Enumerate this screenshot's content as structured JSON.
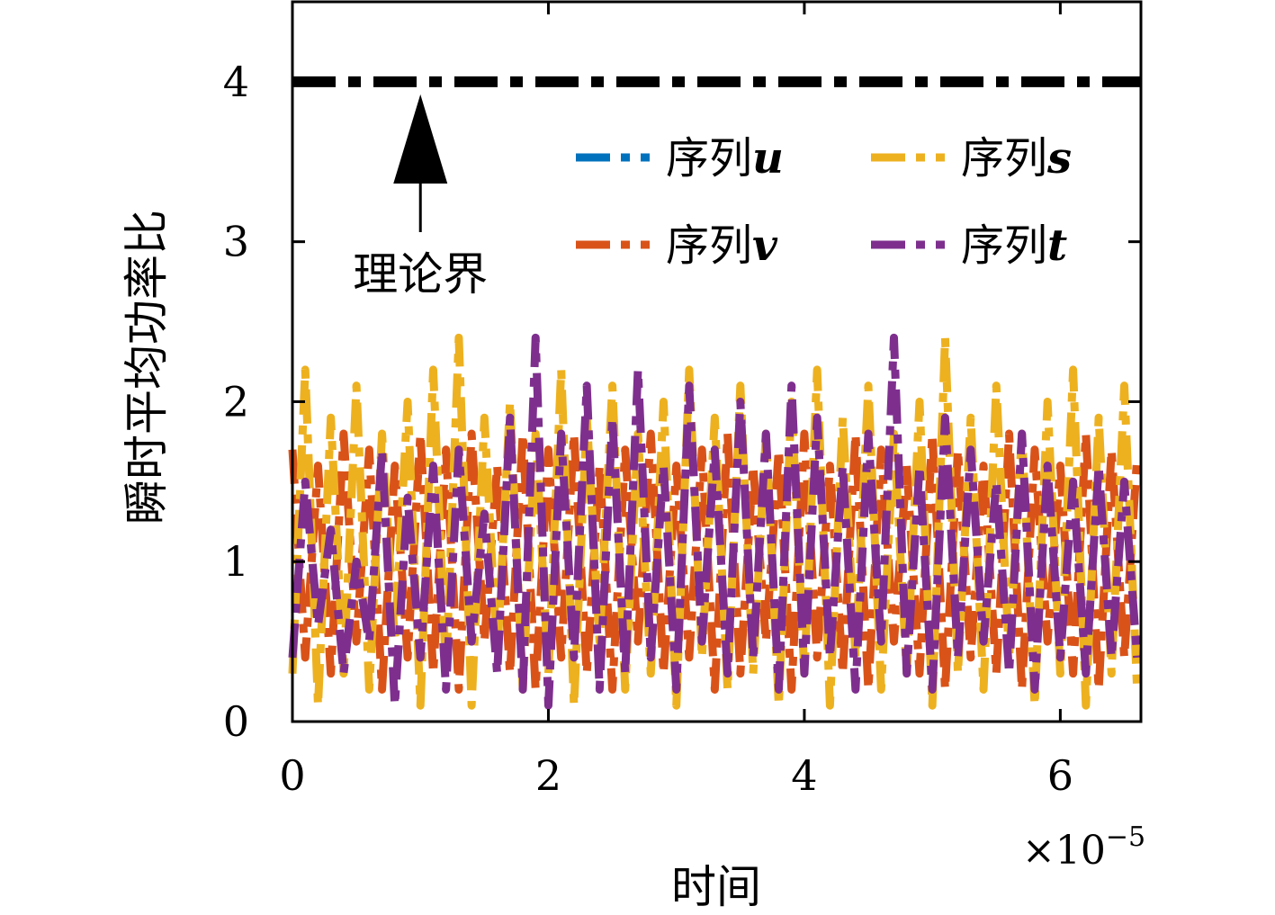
{
  "chart_data": {
    "type": "line",
    "xlabel": "时间",
    "ylabel": "瞬时平均功率比",
    "x_multiplier": "×10",
    "x_multiplier_exponent": "−5",
    "xlim": [
      0,
      6.63
    ],
    "ylim": [
      0,
      4.5
    ],
    "x_ticks": [
      0,
      2,
      4,
      6
    ],
    "x_tick_labels": [
      "0",
      "2",
      "4",
      "6"
    ],
    "y_ticks": [
      0,
      1,
      2,
      3,
      4
    ],
    "y_tick_labels": [
      "0",
      "1",
      "2",
      "3",
      "4"
    ],
    "grid": false,
    "legend_placement": "top-right",
    "threshold": {
      "y": 4,
      "label": "理论界",
      "arrow_x": 1.0,
      "color": "#000000"
    },
    "series": [
      {
        "name_prefix": "序列",
        "name_var": "u",
        "color": "#0072BD",
        "x": [],
        "values": []
      },
      {
        "name_prefix": "序列",
        "name_var": "v",
        "color": "#D95319",
        "x": [
          0,
          0.1,
          0.2,
          0.3,
          0.4,
          0.5,
          0.6,
          0.7,
          0.8,
          0.9,
          1.0,
          1.1,
          1.2,
          1.3,
          1.4,
          1.5,
          1.6,
          1.7,
          1.8,
          1.9,
          2.0,
          2.1,
          2.2,
          2.3,
          2.4,
          2.5,
          2.6,
          2.7,
          2.8,
          2.9,
          3.0,
          3.1,
          3.2,
          3.3,
          3.4,
          3.5,
          3.6,
          3.7,
          3.8,
          3.9,
          4.0,
          4.1,
          4.2,
          4.3,
          4.4,
          4.5,
          4.6,
          4.7,
          4.8,
          4.9,
          5.0,
          5.1,
          5.2,
          5.3,
          5.4,
          5.5,
          5.6,
          5.7,
          5.8,
          5.9,
          6.0,
          6.1,
          6.2,
          6.3,
          6.4,
          6.5,
          6.6
        ],
        "values": [
          1.7,
          0.4,
          1.6,
          0.3,
          1.8,
          0.5,
          1.7,
          0.2,
          1.6,
          0.4,
          1.8,
          0.3,
          1.7,
          0.2,
          1.8,
          0.5,
          1.6,
          0.3,
          1.8,
          0.2,
          1.7,
          0.4,
          1.8,
          0.3,
          1.6,
          0.2,
          1.7,
          0.5,
          1.8,
          0.3,
          1.6,
          0.4,
          1.7,
          0.2,
          1.8,
          0.3,
          1.6,
          0.5,
          1.7,
          0.2,
          1.8,
          0.4,
          1.6,
          0.3,
          1.8,
          0.2,
          1.7,
          0.5,
          1.6,
          0.3,
          1.8,
          0.2,
          1.7,
          0.4,
          1.6,
          0.3,
          1.8,
          0.2,
          1.7,
          0.5,
          1.6,
          0.3,
          1.8,
          0.2,
          1.7,
          0.4,
          1.65
        ]
      },
      {
        "name_prefix": "序列",
        "name_var": "s",
        "color": "#EDB120",
        "x": [
          0,
          0.1,
          0.2,
          0.3,
          0.4,
          0.5,
          0.6,
          0.7,
          0.8,
          0.9,
          1.0,
          1.1,
          1.2,
          1.3,
          1.4,
          1.5,
          1.6,
          1.7,
          1.8,
          1.9,
          2.0,
          2.1,
          2.2,
          2.3,
          2.4,
          2.5,
          2.6,
          2.7,
          2.8,
          2.9,
          3.0,
          3.1,
          3.2,
          3.3,
          3.4,
          3.5,
          3.6,
          3.7,
          3.8,
          3.9,
          4.0,
          4.1,
          4.2,
          4.3,
          4.4,
          4.5,
          4.6,
          4.7,
          4.8,
          4.9,
          5.0,
          5.1,
          5.2,
          5.3,
          5.4,
          5.5,
          5.6,
          5.7,
          5.8,
          5.9,
          6.0,
          6.1,
          6.2,
          6.3,
          6.4,
          6.5,
          6.6
        ],
        "values": [
          0.3,
          2.2,
          0.1,
          1.9,
          0.3,
          2.1,
          0.2,
          1.8,
          0.5,
          2.0,
          0.1,
          2.2,
          0.3,
          2.4,
          0.1,
          1.9,
          0.4,
          2.0,
          0.2,
          1.8,
          0.3,
          2.2,
          0.1,
          1.9,
          0.5,
          2.1,
          0.2,
          1.8,
          0.3,
          2.0,
          0.1,
          2.2,
          0.4,
          1.9,
          0.2,
          2.1,
          0.3,
          1.8,
          0.1,
          2.0,
          0.3,
          2.2,
          0.1,
          1.9,
          0.4,
          2.1,
          0.2,
          1.8,
          0.3,
          2.0,
          0.1,
          2.4,
          0.3,
          1.9,
          0.2,
          2.1,
          0.4,
          1.8,
          0.1,
          2.0,
          0.3,
          2.2,
          0.1,
          1.9,
          0.3,
          2.1,
          0.2
        ]
      },
      {
        "name_prefix": "序列",
        "name_var": "t",
        "color": "#7E2F8E",
        "x": [
          0,
          0.1,
          0.2,
          0.3,
          0.4,
          0.5,
          0.6,
          0.7,
          0.8,
          0.9,
          1.0,
          1.1,
          1.2,
          1.3,
          1.4,
          1.5,
          1.6,
          1.7,
          1.8,
          1.9,
          2.0,
          2.1,
          2.2,
          2.3,
          2.4,
          2.5,
          2.6,
          2.7,
          2.8,
          2.9,
          3.0,
          3.1,
          3.2,
          3.3,
          3.4,
          3.5,
          3.6,
          3.7,
          3.8,
          3.9,
          4.0,
          4.1,
          4.2,
          4.3,
          4.4,
          4.5,
          4.6,
          4.7,
          4.8,
          4.9,
          5.0,
          5.1,
          5.2,
          5.3,
          5.4,
          5.5,
          5.6,
          5.7,
          5.8,
          5.9,
          6.0,
          6.1,
          6.2,
          6.3,
          6.4,
          6.5,
          6.6
        ],
        "values": [
          0.4,
          1.5,
          0.6,
          1.2,
          0.3,
          1.0,
          0.5,
          1.7,
          0.1,
          1.4,
          0.4,
          1.6,
          0.2,
          1.7,
          0.5,
          1.3,
          0.3,
          1.9,
          0.2,
          2.4,
          0.1,
          1.8,
          0.4,
          2.1,
          0.2,
          1.9,
          0.3,
          2.2,
          0.4,
          1.6,
          0.2,
          2.1,
          0.5,
          1.7,
          0.3,
          2.0,
          0.4,
          1.8,
          0.2,
          2.1,
          0.3,
          1.9,
          0.4,
          1.6,
          0.2,
          1.8,
          0.5,
          2.4,
          0.3,
          1.6,
          0.2,
          1.9,
          0.4,
          1.7,
          0.5,
          1.5,
          0.3,
          1.8,
          0.2,
          1.6,
          0.4,
          1.5,
          0.3,
          1.6,
          0.4,
          1.5,
          0.4
        ]
      }
    ]
  }
}
